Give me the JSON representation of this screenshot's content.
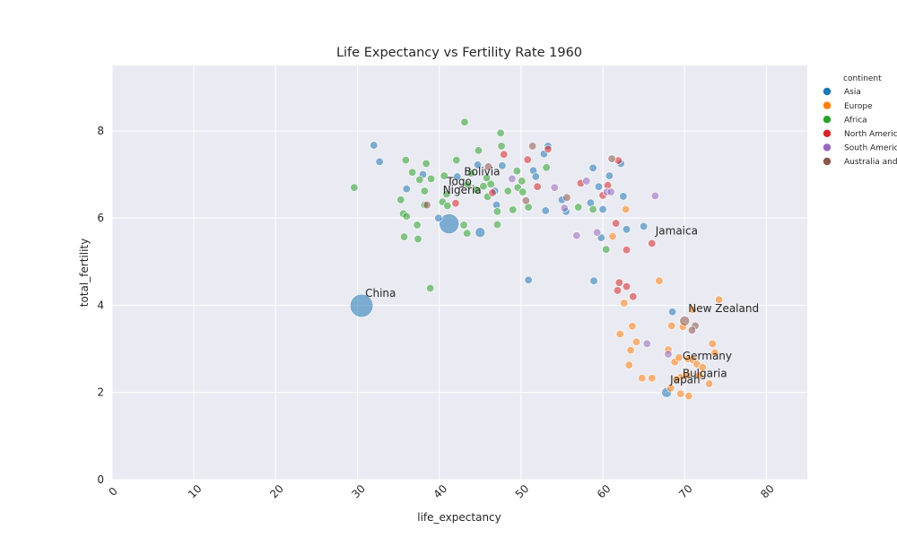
{
  "chart_data": {
    "type": "scatter",
    "title": "Life Expectancy vs Fertility Rate 1960",
    "xlabel": "life_expectancy",
    "ylabel": "total_fertility",
    "xlim": [
      0,
      85
    ],
    "ylim": [
      0,
      9.5
    ],
    "xticks": [
      0,
      10,
      20,
      30,
      40,
      50,
      60,
      70,
      80
    ],
    "yticks": [
      0,
      2,
      4,
      6,
      8
    ],
    "grid": true,
    "legend": {
      "title": "continent",
      "placement": "outside-right",
      "entries": [
        "Asia",
        "Europe",
        "Africa",
        "North America",
        "South America",
        "Australia and Oceania"
      ]
    },
    "colors": {
      "Asia": "#1f77b4",
      "Europe": "#ff7f0e",
      "Africa": "#2ca02c",
      "North America": "#d62728",
      "South America": "#9467bd",
      "Australia and Oceania": "#8c564b"
    },
    "annotations": [
      {
        "label": "China",
        "x": 30.5,
        "y": 3.99
      },
      {
        "label": "Jamaica",
        "x": 66.0,
        "y": 5.42
      },
      {
        "label": "New Zealand",
        "x": 70.0,
        "y": 3.64
      },
      {
        "label": "Germany",
        "x": 69.3,
        "y": 2.55
      },
      {
        "label": "Bulgaria",
        "x": 69.3,
        "y": 2.15
      },
      {
        "label": "Japan",
        "x": 67.8,
        "y": 2.0
      },
      {
        "label": "Bolivia",
        "x": 42.6,
        "y": 6.78
      },
      {
        "label": "Togo",
        "x": 40.5,
        "y": 6.55
      },
      {
        "label": "Nigeria",
        "x": 40.0,
        "y": 6.35
      }
    ],
    "series": [
      {
        "name": "Asia",
        "points": [
          {
            "x": 30.5,
            "y": 3.99,
            "s": 3
          },
          {
            "x": 41.2,
            "y": 5.87,
            "s": 2.6
          },
          {
            "x": 45.0,
            "y": 5.67,
            "s": 1.3
          },
          {
            "x": 32.0,
            "y": 7.67,
            "s": 1
          },
          {
            "x": 32.7,
            "y": 7.29,
            "s": 1
          },
          {
            "x": 36.0,
            "y": 6.67,
            "s": 1
          },
          {
            "x": 38.0,
            "y": 7.0,
            "s": 1
          },
          {
            "x": 42.2,
            "y": 6.95,
            "s": 1
          },
          {
            "x": 44.7,
            "y": 7.22,
            "s": 1
          },
          {
            "x": 46.8,
            "y": 6.62,
            "s": 1
          },
          {
            "x": 47.0,
            "y": 6.3,
            "s": 1
          },
          {
            "x": 47.7,
            "y": 7.2,
            "s": 1
          },
          {
            "x": 51.5,
            "y": 7.09,
            "s": 1
          },
          {
            "x": 51.8,
            "y": 6.95,
            "s": 1
          },
          {
            "x": 52.8,
            "y": 7.47,
            "s": 1
          },
          {
            "x": 53.3,
            "y": 7.65,
            "s": 1
          },
          {
            "x": 53.0,
            "y": 6.17,
            "s": 1
          },
          {
            "x": 55.0,
            "y": 6.42,
            "s": 1
          },
          {
            "x": 55.5,
            "y": 6.15,
            "s": 1
          },
          {
            "x": 58.5,
            "y": 6.35,
            "s": 1
          },
          {
            "x": 59.5,
            "y": 6.72,
            "s": 1
          },
          {
            "x": 59.8,
            "y": 5.55,
            "s": 1
          },
          {
            "x": 60.0,
            "y": 6.2,
            "s": 1
          },
          {
            "x": 58.8,
            "y": 7.15,
            "s": 1
          },
          {
            "x": 60.8,
            "y": 6.97,
            "s": 1
          },
          {
            "x": 62.2,
            "y": 7.25,
            "s": 1
          },
          {
            "x": 62.5,
            "y": 6.5,
            "s": 1
          },
          {
            "x": 62.9,
            "y": 5.74,
            "s": 1
          },
          {
            "x": 65.0,
            "y": 5.81,
            "s": 1
          },
          {
            "x": 50.9,
            "y": 4.58,
            "s": 1
          },
          {
            "x": 58.9,
            "y": 4.56,
            "s": 1
          },
          {
            "x": 68.5,
            "y": 3.85,
            "s": 1
          },
          {
            "x": 67.8,
            "y": 2.0,
            "s": 1.3
          },
          {
            "x": 39.9,
            "y": 6.0,
            "s": 1
          }
        ]
      },
      {
        "name": "Europe",
        "points": [
          {
            "x": 74.2,
            "y": 4.13,
            "s": 1
          },
          {
            "x": 71.0,
            "y": 3.9,
            "s": 1
          },
          {
            "x": 66.9,
            "y": 4.56,
            "s": 1
          },
          {
            "x": 62.6,
            "y": 4.05,
            "s": 1
          },
          {
            "x": 62.1,
            "y": 3.34,
            "s": 1
          },
          {
            "x": 63.6,
            "y": 3.52,
            "s": 1
          },
          {
            "x": 68.4,
            "y": 3.53,
            "s": 1
          },
          {
            "x": 69.8,
            "y": 3.51,
            "s": 1
          },
          {
            "x": 64.1,
            "y": 3.16,
            "s": 1
          },
          {
            "x": 63.4,
            "y": 2.97,
            "s": 1
          },
          {
            "x": 68.0,
            "y": 2.98,
            "s": 1
          },
          {
            "x": 73.4,
            "y": 3.12,
            "s": 1
          },
          {
            "x": 73.7,
            "y": 2.91,
            "s": 1
          },
          {
            "x": 63.2,
            "y": 2.63,
            "s": 1
          },
          {
            "x": 68.8,
            "y": 2.7,
            "s": 1
          },
          {
            "x": 69.3,
            "y": 2.8,
            "s": 1
          },
          {
            "x": 70.4,
            "y": 2.77,
            "s": 1
          },
          {
            "x": 71.0,
            "y": 2.75,
            "s": 1
          },
          {
            "x": 71.5,
            "y": 2.65,
            "s": 1
          },
          {
            "x": 72.2,
            "y": 2.58,
            "s": 1
          },
          {
            "x": 64.8,
            "y": 2.33,
            "s": 1
          },
          {
            "x": 66.0,
            "y": 2.33,
            "s": 1
          },
          {
            "x": 69.5,
            "y": 2.35,
            "s": 1
          },
          {
            "x": 70.3,
            "y": 2.4,
            "s": 1
          },
          {
            "x": 71.8,
            "y": 2.4,
            "s": 1
          },
          {
            "x": 73.0,
            "y": 2.2,
            "s": 1
          },
          {
            "x": 68.3,
            "y": 2.1,
            "s": 1
          },
          {
            "x": 69.0,
            "y": 2.3,
            "s": 1
          },
          {
            "x": 69.5,
            "y": 1.97,
            "s": 1
          },
          {
            "x": 70.5,
            "y": 1.92,
            "s": 1
          },
          {
            "x": 61.2,
            "y": 5.58,
            "s": 1
          },
          {
            "x": 62.8,
            "y": 6.2,
            "s": 1
          }
        ]
      },
      {
        "name": "Africa",
        "points": [
          {
            "x": 29.6,
            "y": 6.7,
            "s": 1
          },
          {
            "x": 35.3,
            "y": 6.42,
            "s": 1
          },
          {
            "x": 35.6,
            "y": 6.1,
            "s": 1
          },
          {
            "x": 36.0,
            "y": 6.04,
            "s": 1
          },
          {
            "x": 35.7,
            "y": 5.57,
            "s": 1
          },
          {
            "x": 37.4,
            "y": 5.52,
            "s": 1
          },
          {
            "x": 37.3,
            "y": 5.84,
            "s": 1
          },
          {
            "x": 35.9,
            "y": 7.33,
            "s": 1
          },
          {
            "x": 36.7,
            "y": 7.05,
            "s": 1
          },
          {
            "x": 37.6,
            "y": 6.88,
            "s": 1
          },
          {
            "x": 38.4,
            "y": 7.25,
            "s": 1
          },
          {
            "x": 38.2,
            "y": 6.62,
            "s": 1
          },
          {
            "x": 38.2,
            "y": 6.3,
            "s": 1
          },
          {
            "x": 38.9,
            "y": 4.39,
            "s": 1
          },
          {
            "x": 39.0,
            "y": 6.9,
            "s": 1
          },
          {
            "x": 40.4,
            "y": 6.37,
            "s": 1
          },
          {
            "x": 40.6,
            "y": 6.97,
            "s": 1
          },
          {
            "x": 40.9,
            "y": 6.55,
            "s": 1
          },
          {
            "x": 41.0,
            "y": 6.28,
            "s": 1
          },
          {
            "x": 42.1,
            "y": 7.33,
            "s": 1
          },
          {
            "x": 43.1,
            "y": 8.2,
            "s": 1
          },
          {
            "x": 43.0,
            "y": 5.84,
            "s": 1
          },
          {
            "x": 43.4,
            "y": 5.65,
            "s": 1
          },
          {
            "x": 43.5,
            "y": 6.77,
            "s": 1
          },
          {
            "x": 43.9,
            "y": 7.03,
            "s": 1
          },
          {
            "x": 44.5,
            "y": 6.65,
            "s": 1
          },
          {
            "x": 44.8,
            "y": 7.55,
            "s": 1
          },
          {
            "x": 45.4,
            "y": 6.73,
            "s": 1
          },
          {
            "x": 45.8,
            "y": 6.92,
            "s": 1
          },
          {
            "x": 45.9,
            "y": 6.49,
            "s": 1
          },
          {
            "x": 46.3,
            "y": 6.78,
            "s": 1
          },
          {
            "x": 47.1,
            "y": 5.85,
            "s": 1
          },
          {
            "x": 47.1,
            "y": 6.15,
            "s": 1
          },
          {
            "x": 47.5,
            "y": 7.95,
            "s": 1
          },
          {
            "x": 47.6,
            "y": 7.65,
            "s": 1
          },
          {
            "x": 48.4,
            "y": 6.62,
            "s": 1
          },
          {
            "x": 49.0,
            "y": 6.19,
            "s": 1
          },
          {
            "x": 49.5,
            "y": 7.08,
            "s": 1
          },
          {
            "x": 49.6,
            "y": 6.7,
            "s": 1
          },
          {
            "x": 50.2,
            "y": 6.6,
            "s": 1
          },
          {
            "x": 50.1,
            "y": 6.85,
            "s": 1
          },
          {
            "x": 50.9,
            "y": 6.25,
            "s": 1
          },
          {
            "x": 53.1,
            "y": 7.16,
            "s": 1
          },
          {
            "x": 57.0,
            "y": 6.25,
            "s": 1
          },
          {
            "x": 58.8,
            "y": 6.2,
            "s": 1
          },
          {
            "x": 60.4,
            "y": 5.28,
            "s": 1
          }
        ]
      },
      {
        "name": "North America",
        "points": [
          {
            "x": 42.0,
            "y": 6.34,
            "s": 1
          },
          {
            "x": 46.5,
            "y": 6.58,
            "s": 1
          },
          {
            "x": 47.9,
            "y": 7.46,
            "s": 1
          },
          {
            "x": 50.8,
            "y": 7.34,
            "s": 1
          },
          {
            "x": 52.0,
            "y": 6.72,
            "s": 1
          },
          {
            "x": 53.3,
            "y": 7.58,
            "s": 1
          },
          {
            "x": 57.3,
            "y": 6.8,
            "s": 1
          },
          {
            "x": 60.0,
            "y": 6.52,
            "s": 1
          },
          {
            "x": 60.6,
            "y": 6.75,
            "s": 1
          },
          {
            "x": 61.9,
            "y": 7.32,
            "s": 1
          },
          {
            "x": 61.6,
            "y": 5.88,
            "s": 1
          },
          {
            "x": 62.9,
            "y": 5.27,
            "s": 1
          },
          {
            "x": 66.0,
            "y": 5.42,
            "s": 1
          },
          {
            "x": 62.0,
            "y": 4.52,
            "s": 1
          },
          {
            "x": 61.8,
            "y": 4.34,
            "s": 1
          },
          {
            "x": 62.9,
            "y": 4.43,
            "s": 1
          },
          {
            "x": 63.7,
            "y": 4.2,
            "s": 1
          }
        ]
      },
      {
        "name": "South America",
        "points": [
          {
            "x": 48.9,
            "y": 6.9,
            "s": 1
          },
          {
            "x": 54.1,
            "y": 6.7,
            "s": 1
          },
          {
            "x": 55.3,
            "y": 6.23,
            "s": 1
          },
          {
            "x": 56.8,
            "y": 5.6,
            "s": 1
          },
          {
            "x": 58.0,
            "y": 6.85,
            "s": 1
          },
          {
            "x": 59.3,
            "y": 5.67,
            "s": 1
          },
          {
            "x": 60.5,
            "y": 6.6,
            "s": 1
          },
          {
            "x": 65.4,
            "y": 3.12,
            "s": 1
          },
          {
            "x": 68.0,
            "y": 2.88,
            "s": 1
          },
          {
            "x": 66.4,
            "y": 6.51,
            "s": 1
          },
          {
            "x": 61.0,
            "y": 6.6,
            "s": 1
          }
        ]
      },
      {
        "name": "Australia and Oceania",
        "points": [
          {
            "x": 38.5,
            "y": 6.3,
            "s": 1
          },
          {
            "x": 46.0,
            "y": 7.18,
            "s": 1
          },
          {
            "x": 50.6,
            "y": 6.4,
            "s": 1
          },
          {
            "x": 51.4,
            "y": 7.65,
            "s": 1
          },
          {
            "x": 55.6,
            "y": 6.47,
            "s": 1
          },
          {
            "x": 61.1,
            "y": 7.36,
            "s": 1
          },
          {
            "x": 70.0,
            "y": 3.64,
            "s": 1.3
          },
          {
            "x": 71.3,
            "y": 3.53,
            "s": 1
          },
          {
            "x": 70.9,
            "y": 3.43,
            "s": 1
          }
        ]
      }
    ]
  }
}
